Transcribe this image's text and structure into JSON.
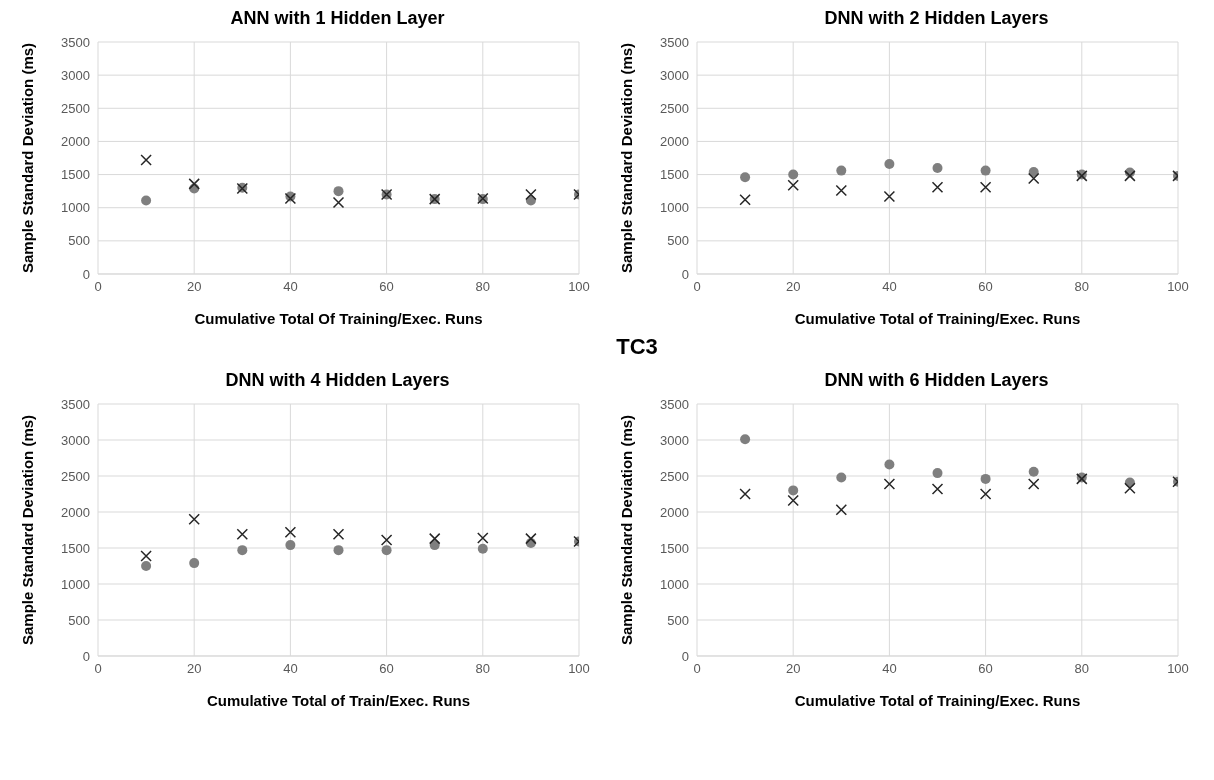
{
  "chart_data": [
    {
      "type": "scatter",
      "title": "ANN with 1 Hidden Layer",
      "xlabel": "Cumulative Total Of Training/Exec. Runs",
      "ylabel": "Sample Standard Deviation (ms)",
      "annotations": [
        "TC3"
      ],
      "x": [
        10,
        20,
        30,
        40,
        50,
        60,
        70,
        80,
        90,
        100
      ],
      "xlim": [
        0,
        100
      ],
      "xticks": [
        0,
        20,
        40,
        60,
        80,
        100
      ],
      "ylim": [
        0,
        3500
      ],
      "yticks": [
        0,
        500,
        1000,
        1500,
        2000,
        2500,
        3000,
        3500
      ],
      "grid": true,
      "legend": false,
      "series": [
        {
          "color": "#7f7f7f",
          "marker": "circle",
          "values": [
            1110,
            1290,
            1300,
            1170,
            1250,
            1200,
            1130,
            1130,
            1110,
            1200
          ]
        },
        {
          "color": "#262626",
          "marker": "cross",
          "values": [
            1720,
            1360,
            1290,
            1140,
            1080,
            1200,
            1130,
            1140,
            1200,
            1200
          ]
        }
      ]
    },
    {
      "type": "scatter",
      "title": "DNN with 2 Hidden Layers",
      "xlabel": "Cumulative  Total  of Training/Exec. Runs",
      "ylabel": "Sample Standard Deviation (ms)",
      "x": [
        10,
        20,
        30,
        40,
        50,
        60,
        70,
        80,
        90,
        100
      ],
      "xlim": [
        0,
        100
      ],
      "xticks": [
        0,
        20,
        40,
        60,
        80,
        100
      ],
      "ylim": [
        0,
        3500
      ],
      "yticks": [
        0,
        500,
        1000,
        1500,
        2000,
        2500,
        3000,
        3500
      ],
      "grid": true,
      "legend": false,
      "series": [
        {
          "color": "#7f7f7f",
          "marker": "circle",
          "values": [
            1460,
            1500,
            1560,
            1660,
            1600,
            1560,
            1540,
            1500,
            1530,
            1480
          ]
        },
        {
          "color": "#262626",
          "marker": "cross",
          "values": [
            1120,
            1340,
            1260,
            1170,
            1310,
            1310,
            1440,
            1480,
            1480,
            1480
          ]
        }
      ]
    },
    {
      "type": "scatter",
      "title": "DNN with 4 Hidden Layers",
      "xlabel": "Cumulative Total of Train/Exec. Runs",
      "ylabel": "Sample Standard Deviation (ms)",
      "x": [
        10,
        20,
        30,
        40,
        50,
        60,
        70,
        80,
        90,
        100
      ],
      "xlim": [
        0,
        100
      ],
      "xticks": [
        0,
        20,
        40,
        60,
        80,
        100
      ],
      "ylim": [
        0,
        3500
      ],
      "yticks": [
        0,
        500,
        1000,
        1500,
        2000,
        2500,
        3000,
        3500
      ],
      "grid": true,
      "legend": false,
      "series": [
        {
          "color": "#7f7f7f",
          "marker": "circle",
          "values": [
            1250,
            1290,
            1470,
            1540,
            1470,
            1470,
            1540,
            1490,
            1570,
            1590
          ]
        },
        {
          "color": "#262626",
          "marker": "cross",
          "values": [
            1390,
            1900,
            1690,
            1720,
            1690,
            1610,
            1630,
            1640,
            1630,
            1590
          ]
        }
      ]
    },
    {
      "type": "scatter",
      "title": "DNN with 6 Hidden Layers",
      "xlabel": "Cumulative Total of Training/Exec. Runs",
      "ylabel": "Sample Standard Deviation (ms)",
      "x": [
        10,
        20,
        30,
        40,
        50,
        60,
        70,
        80,
        90,
        100
      ],
      "xlim": [
        0,
        100
      ],
      "xticks": [
        0,
        20,
        40,
        60,
        80,
        100
      ],
      "ylim": [
        0,
        3500
      ],
      "yticks": [
        0,
        500,
        1000,
        1500,
        2000,
        2500,
        3000,
        3500
      ],
      "grid": true,
      "legend": false,
      "series": [
        {
          "color": "#7f7f7f",
          "marker": "circle",
          "values": [
            3010,
            2300,
            2480,
            2660,
            2540,
            2460,
            2560,
            2480,
            2410,
            2420
          ]
        },
        {
          "color": "#262626",
          "marker": "cross",
          "values": [
            2250,
            2160,
            2030,
            2390,
            2320,
            2250,
            2390,
            2460,
            2330,
            2420
          ]
        }
      ]
    }
  ]
}
